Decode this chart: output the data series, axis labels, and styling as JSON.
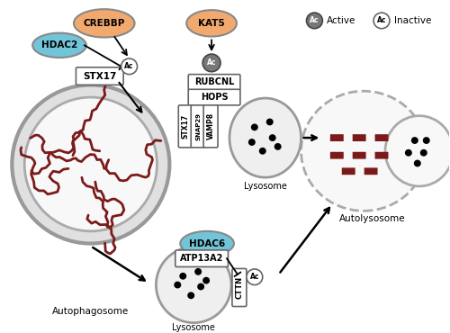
{
  "bg_color": "#ffffff",
  "orange_color": "#F2A96E",
  "blue_color": "#72C4D8",
  "gray_dark": "#787878",
  "light_gray_fill": "#efefef",
  "mid_gray_fill": "#e0e0e0",
  "dark_red": "#7B1A1A",
  "arrow_color": "#111111",
  "edge_color": "#666666",
  "white": "#ffffff",
  "autophagosome_label": "Autophagosome",
  "autolysosome_label": "Autolysosome",
  "lysosome_label": "Lysosome",
  "legend_active": "Active",
  "legend_inactive": "Inactive"
}
